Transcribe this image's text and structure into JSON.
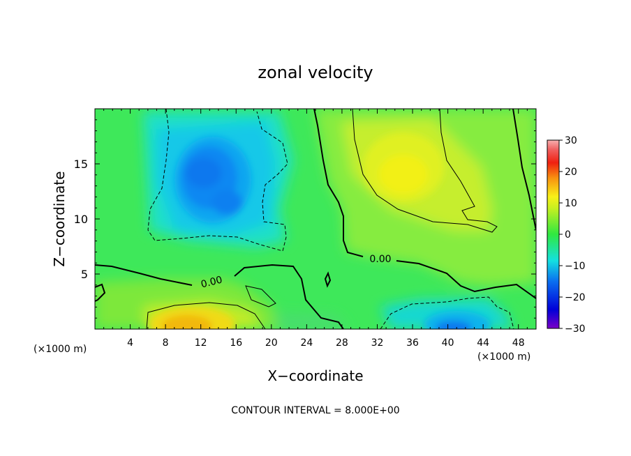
{
  "chart_data": {
    "type": "heatmap",
    "title": "zonal velocity",
    "xlabel": "X−coordinate",
    "ylabel": "Z−coordinate",
    "x_unit_left": "(×1000 m)",
    "x_unit_right": "(×1000 m)",
    "footer": "CONTOUR INTERVAL = 8.000E+00",
    "xlim": [
      0,
      50
    ],
    "ylim": [
      0,
      20
    ],
    "x_ticks": [
      "4",
      "8",
      "12",
      "16",
      "20",
      "24",
      "28",
      "32",
      "36",
      "40",
      "44",
      "48"
    ],
    "x_tick_values": [
      4,
      8,
      12,
      16,
      20,
      24,
      28,
      32,
      36,
      40,
      44,
      48
    ],
    "y_ticks": [
      "5",
      "10",
      "15"
    ],
    "y_tick_values": [
      5,
      10,
      15
    ],
    "colorbar": {
      "min": -30,
      "max": 30,
      "ticks": [
        "30",
        "20",
        "10",
        "0",
        "−10",
        "−20",
        "−30"
      ],
      "tick_values": [
        30,
        20,
        10,
        0,
        -10,
        -20,
        -30
      ]
    },
    "contour_labels": [
      {
        "text": "0.00",
        "x": 13.2,
        "y": 4.4
      },
      {
        "text": "0.00",
        "x": 32.2,
        "y": 6.4
      }
    ],
    "features": [
      {
        "sign": "negative",
        "x": 12.5,
        "y": 13.5,
        "peak": -12
      },
      {
        "sign": "positive",
        "x": 35,
        "y": 14,
        "peak": 11
      },
      {
        "sign": "positive",
        "x": 11,
        "y": 1.2,
        "peak": 14
      },
      {
        "sign": "negative",
        "x": 41.5,
        "y": 1.0,
        "peak": -11
      }
    ]
  }
}
